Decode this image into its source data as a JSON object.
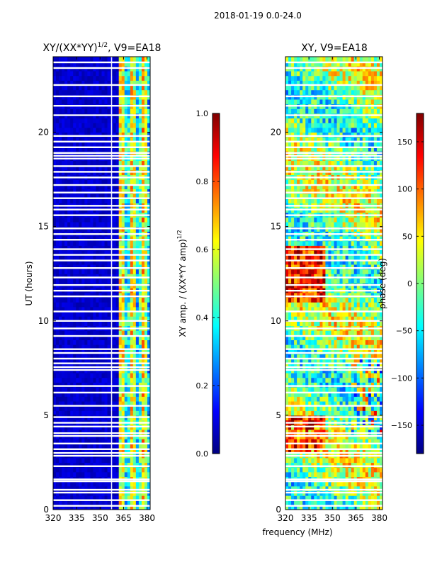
{
  "figure_title": "2018-01-19 0.0-24.0",
  "colors": {
    "jet": [
      "#00007f",
      "#0000ff",
      "#007fff",
      "#00ffff",
      "#7fff7f",
      "#ffff00",
      "#ff7f00",
      "#ff0000",
      "#7f0000"
    ],
    "gap": "#ffffff"
  },
  "chart_data": [
    {
      "type": "heatmap",
      "title": "XY/(XX*YY)^1/2, V9=EA18",
      "title_main": "XY/(XX*YY)",
      "title_sup": "1/2",
      "title_tail": ", V9=EA18",
      "xlabel": "",
      "ylabel": "UT (hours)",
      "xlim": [
        320,
        382
      ],
      "ylim": [
        0,
        24
      ],
      "xticks": [
        320,
        335,
        350,
        365,
        380
      ],
      "yticks": [
        0,
        5,
        10,
        15,
        20
      ],
      "quantity": "normalized cross-polarization amplitude",
      "colorbar": {
        "label": "XY amp. / (XX*YY amp)^1/2",
        "label_main": "XY amp. / (XX*YY amp)",
        "label_sup": "1/2",
        "range": [
          0.0,
          1.0
        ],
        "ticks": [
          "0.0",
          "0.2",
          "0.4",
          "0.6",
          "0.8",
          "1.0"
        ]
      }
    },
    {
      "type": "heatmap",
      "title": "XY, V9=EA18",
      "xlabel": "frequency (MHz)",
      "ylabel": "",
      "xlim": [
        320,
        382
      ],
      "ylim": [
        0,
        24
      ],
      "xticks": [
        320,
        335,
        350,
        365,
        380
      ],
      "yticks": [
        0,
        5,
        10,
        15,
        20
      ],
      "quantity": "cross-polarization phase",
      "colorbar": {
        "label": "phase (deg)",
        "range": [
          -180,
          180
        ],
        "ticks": [
          "−150",
          "−100",
          "−50",
          "0",
          "50",
          "100",
          "150"
        ]
      }
    }
  ],
  "flagged_ut_hours": [
    0.2,
    0.5,
    0.9,
    1.05,
    1.5,
    1.6,
    2.3,
    2.85,
    3.0,
    3.2,
    3.5,
    3.9,
    4.05,
    4.4,
    4.6,
    4.9,
    5.5,
    6.2,
    6.55,
    7.4,
    7.55,
    7.75,
    8.0,
    8.3,
    8.5,
    9.2,
    9.6,
    10.0,
    10.5,
    11.3,
    11.6,
    11.9,
    12.3,
    12.8,
    13.2,
    13.5,
    13.8,
    14.3,
    14.6,
    14.9,
    15.6,
    15.9,
    16.1,
    16.5,
    16.8,
    17.2,
    17.6,
    17.9,
    18.2,
    18.6,
    18.75,
    18.9,
    19.2,
    19.5,
    19.8,
    20.9,
    21.4,
    21.9,
    22.5,
    23.4,
    23.7
  ],
  "flagged_freq_mhz": [
    [
      357,
      362
    ]
  ]
}
